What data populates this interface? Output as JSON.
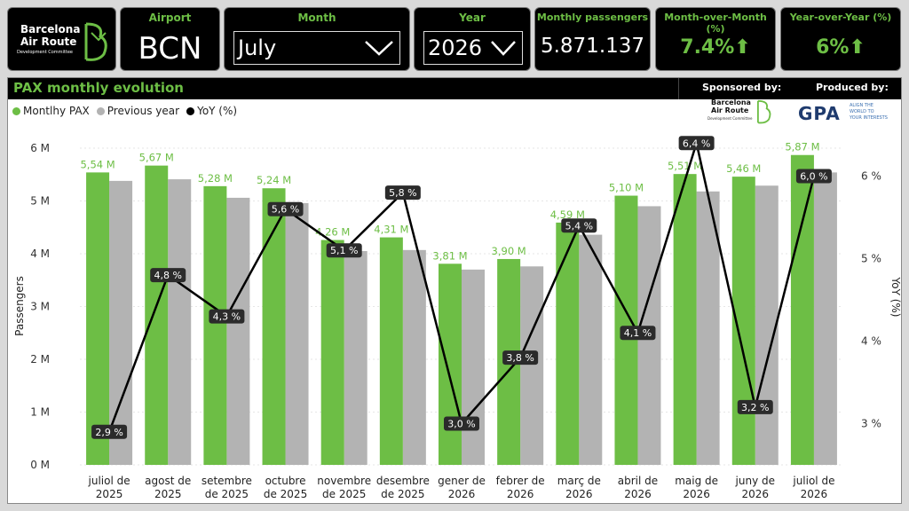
{
  "brand": {
    "line1": "Barcelona",
    "line2": "Air Route",
    "line3": "Development Committee",
    "green": "#6dbe45"
  },
  "filters": {
    "airport_label": "Airport",
    "airport_value": "BCN",
    "month_label": "Month",
    "month_value": "July",
    "year_label": "Year",
    "year_value": "2026"
  },
  "kpis": {
    "pax_label": "Monthly passengers",
    "pax_value": "5.871.137",
    "mom_label": "Month-over-Month (%)",
    "mom_value": "7.4%",
    "yoy_label": "Year-over-Year (%)",
    "yoy_value": "6%"
  },
  "panel": {
    "sponsored_label": "Sponsored by:",
    "produced_label": "Produced by:",
    "gpa_logo": "GPA",
    "gpa_tagline_1": "ALIGN THE",
    "gpa_tagline_2": "WORLD TO",
    "gpa_tagline_3": "YOUR INTERESTS"
  },
  "chart_data": {
    "type": "bar",
    "title": "PAX monthly evolution",
    "ylabel": "Passengers",
    "y2label": "YoY (%)",
    "ylim": [
      0,
      6
    ],
    "y_ticks": [
      "0 M",
      "1 M",
      "2 M",
      "3 M",
      "4 M",
      "5 M",
      "6 M"
    ],
    "y2_ticks": [
      "3 %",
      "4 %",
      "5 %",
      "6 %"
    ],
    "y2lim": [
      2.5,
      6.5
    ],
    "categories": [
      [
        "juliol de",
        "2025"
      ],
      [
        "agost de",
        "2025"
      ],
      [
        "setembre",
        "de 2025"
      ],
      [
        "octubre",
        "de 2025"
      ],
      [
        "novembre",
        "de 2025"
      ],
      [
        "desembre",
        "de 2025"
      ],
      [
        "gener de",
        "2026"
      ],
      [
        "febrer de",
        "2026"
      ],
      [
        "març de",
        "2026"
      ],
      [
        "abril de",
        "2026"
      ],
      [
        "maig de",
        "2026"
      ],
      [
        "juny de",
        "2026"
      ],
      [
        "juliol de",
        "2026"
      ]
    ],
    "series": [
      {
        "name": "Montlhy PAX",
        "color": "#6dbe45",
        "values": [
          5.54,
          5.67,
          5.28,
          5.24,
          4.26,
          4.31,
          3.81,
          3.9,
          4.59,
          5.1,
          5.51,
          5.46,
          5.87
        ],
        "labels": [
          "5,54 M",
          "5,67 M",
          "5,28 M",
          "5,24 M",
          "4,26 M",
          "4,31 M",
          "3,81 M",
          "3,90 M",
          "4,59 M",
          "5,10 M",
          "5,51 M",
          "5,46 M",
          "5,87 M"
        ]
      },
      {
        "name": "Previous year",
        "color": "#b3b3b3",
        "values": [
          5.38,
          5.41,
          5.06,
          4.96,
          4.05,
          4.07,
          3.7,
          3.76,
          4.36,
          4.9,
          5.18,
          5.29,
          5.54
        ]
      },
      {
        "name": "YoY (%)",
        "color": "#000000",
        "values": [
          2.9,
          4.8,
          4.3,
          5.6,
          5.1,
          5.8,
          3.0,
          3.8,
          5.4,
          4.1,
          6.4,
          3.2,
          6.0
        ],
        "labels": [
          "2,9 %",
          "4,8 %",
          "4,3 %",
          "5,6 %",
          "5,1 %",
          "5,8 %",
          "3,0 %",
          "3,8 %",
          "5,4 %",
          "4,1 %",
          "6,4 %",
          "3,2 %",
          "6,0 %"
        ]
      }
    ]
  }
}
